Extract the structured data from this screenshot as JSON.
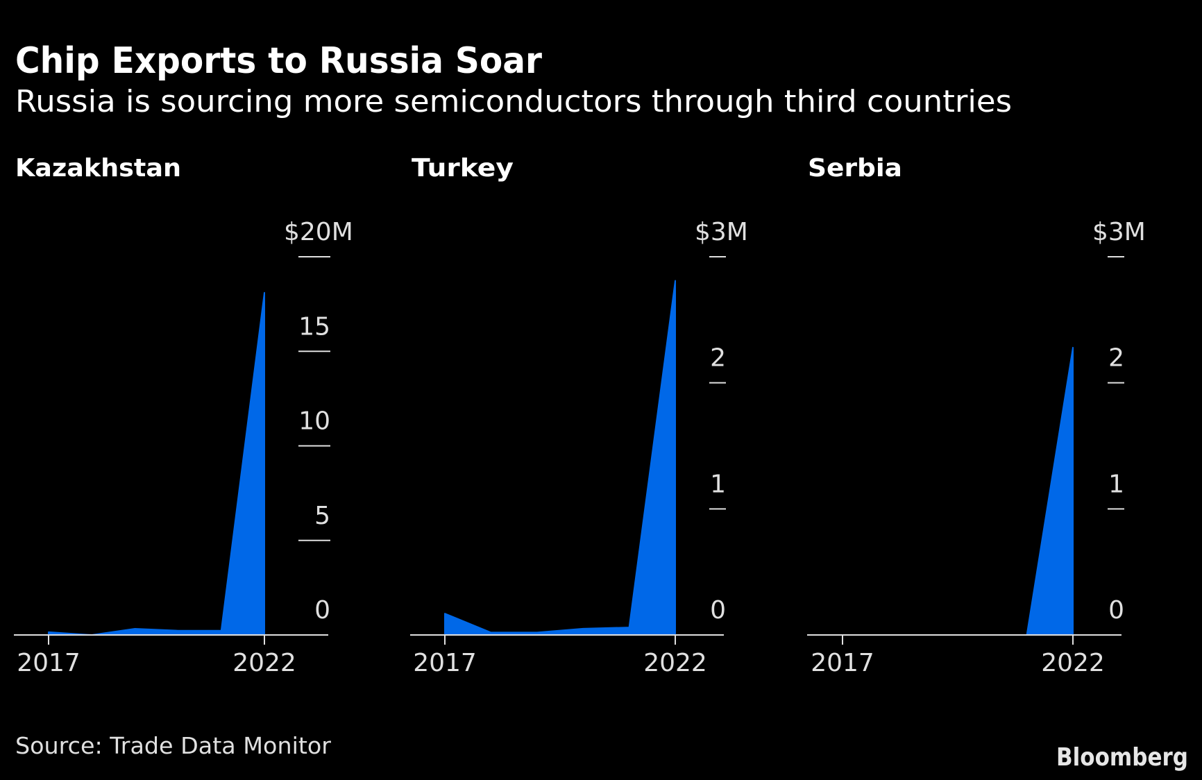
{
  "title": "Chip Exports to Russia Soar",
  "subtitle": "Russia is sourcing more semiconductors through third countries",
  "source": "Source: Trade Data Monitor",
  "logo": "Bloomberg",
  "colors": {
    "background": "#000000",
    "area": "#0068e8",
    "text": "#ffffff",
    "axis": "#e0e0e0"
  },
  "chart_data": [
    {
      "type": "area",
      "title": "Kazakhstan",
      "x": [
        2017,
        2018,
        2019,
        2020,
        2021,
        2022
      ],
      "values": [
        0.15,
        0,
        0.33,
        0.23,
        0.23,
        18.1
      ],
      "unit": "$M",
      "ylim": [
        0,
        20
      ],
      "yticks": [
        0,
        5,
        10,
        15,
        20
      ],
      "ytick_labels": [
        "0",
        "5",
        "10",
        "15",
        "$20M"
      ],
      "xtick_labels": [
        "2017",
        "2022"
      ],
      "xticks": [
        2017,
        2022
      ],
      "y_axis_side": "right",
      "grid": false
    },
    {
      "type": "area",
      "title": "Turkey",
      "x": [
        2017,
        2018,
        2019,
        2020,
        2021,
        2022
      ],
      "values": [
        0.17,
        0.02,
        0.02,
        0.05,
        0.06,
        2.81
      ],
      "unit": "$M",
      "ylim": [
        0,
        3
      ],
      "yticks": [
        0,
        1,
        2,
        3
      ],
      "ytick_labels": [
        "0",
        "1",
        "2",
        "$3M"
      ],
      "xtick_labels": [
        "2017",
        "2022"
      ],
      "xticks": [
        2017,
        2022
      ],
      "y_axis_side": "right",
      "grid": false
    },
    {
      "type": "area",
      "title": "Serbia",
      "x": [
        2017,
        2018,
        2019,
        2020,
        2021,
        2022
      ],
      "values": [
        0,
        0,
        0,
        0,
        0,
        2.28
      ],
      "unit": "$M",
      "ylim": [
        0,
        3
      ],
      "yticks": [
        0,
        1,
        2,
        3
      ],
      "ytick_labels": [
        "0",
        "1",
        "2",
        "$3M"
      ],
      "xtick_labels": [
        "2017",
        "2022"
      ],
      "xticks": [
        2017,
        2022
      ],
      "y_axis_side": "right",
      "grid": false
    }
  ]
}
